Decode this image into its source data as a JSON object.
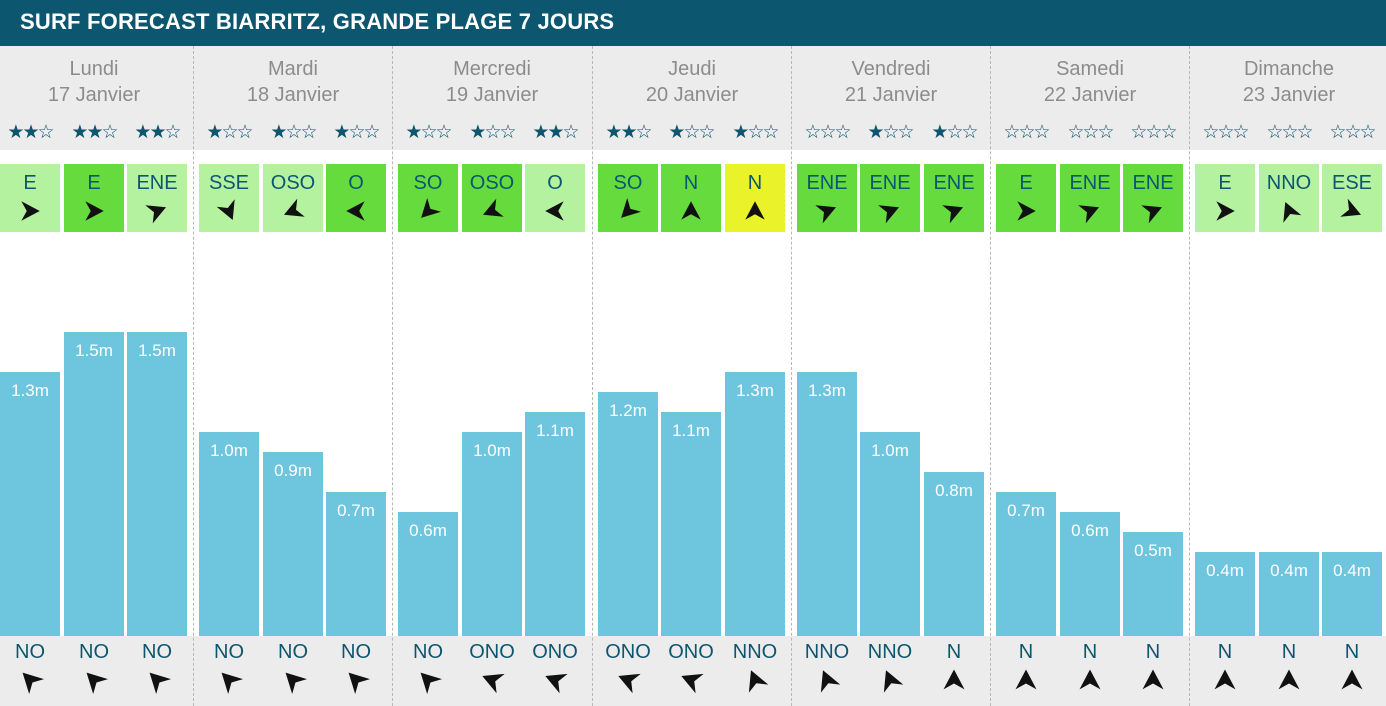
{
  "header": {
    "title": "SURF FORECAST BIARRITZ, GRANDE PLAGE 7 JOURS"
  },
  "days": [
    {
      "name": "Lundi",
      "date": "17 Janvier"
    },
    {
      "name": "Mardi",
      "date": "18 Janvier"
    },
    {
      "name": "Mercredi",
      "date": "19 Janvier"
    },
    {
      "name": "Jeudi",
      "date": "20 Janvier"
    },
    {
      "name": "Vendredi",
      "date": "21 Janvier"
    },
    {
      "name": "Samedi",
      "date": "22 Janvier"
    },
    {
      "name": "Dimanche",
      "date": "23 Janvier"
    }
  ],
  "colors": {
    "header_bg": "#0d5670",
    "text_dark": "#0d5670",
    "bar": "#6ec5de",
    "wind_light": "#b5f2a0",
    "wind_mid": "#66db3e",
    "wind_yellow": "#eaf22a",
    "band_bg": "#ececec"
  },
  "chart_data": {
    "type": "bar",
    "ylabel": "",
    "unit": "m",
    "ylim": [
      0,
      1.5
    ],
    "slots": [
      {
        "day": "Lundi",
        "height": 1.3,
        "label": "1.3m",
        "stars": 2,
        "wind": "E",
        "wind_deg": 90,
        "wind_color": "light",
        "swell": "NO",
        "swell_deg": 315
      },
      {
        "day": "Lundi",
        "height": 1.5,
        "label": "1.5m",
        "stars": 2,
        "wind": "E",
        "wind_deg": 90,
        "wind_color": "mid",
        "swell": "NO",
        "swell_deg": 315
      },
      {
        "day": "Lundi",
        "height": 1.5,
        "label": "1.5m",
        "stars": 2,
        "wind": "ENE",
        "wind_deg": 67.5,
        "wind_color": "light",
        "swell": "NO",
        "swell_deg": 315
      },
      {
        "day": "Mardi",
        "height": 1.0,
        "label": "1.0m",
        "stars": 1,
        "wind": "SSE",
        "wind_deg": 157.5,
        "wind_color": "light",
        "swell": "NO",
        "swell_deg": 315
      },
      {
        "day": "Mardi",
        "height": 0.9,
        "label": "0.9m",
        "stars": 1,
        "wind": "OSO",
        "wind_deg": 247.5,
        "wind_color": "light",
        "swell": "NO",
        "swell_deg": 315
      },
      {
        "day": "Mardi",
        "height": 0.7,
        "label": "0.7m",
        "stars": 1,
        "wind": "O",
        "wind_deg": 270,
        "wind_color": "mid",
        "swell": "NO",
        "swell_deg": 315
      },
      {
        "day": "Mercredi",
        "height": 0.6,
        "label": "0.6m",
        "stars": 1,
        "wind": "SO",
        "wind_deg": 225,
        "wind_color": "mid",
        "swell": "NO",
        "swell_deg": 315
      },
      {
        "day": "Mercredi",
        "height": 1.0,
        "label": "1.0m",
        "stars": 1,
        "wind": "OSO",
        "wind_deg": 247.5,
        "wind_color": "mid",
        "swell": "ONO",
        "swell_deg": 292.5
      },
      {
        "day": "Mercredi",
        "height": 1.1,
        "label": "1.1m",
        "stars": 2,
        "wind": "O",
        "wind_deg": 270,
        "wind_color": "light",
        "swell": "ONO",
        "swell_deg": 292.5
      },
      {
        "day": "Jeudi",
        "height": 1.2,
        "label": "1.2m",
        "stars": 2,
        "wind": "SO",
        "wind_deg": 225,
        "wind_color": "mid",
        "swell": "ONO",
        "swell_deg": 292.5
      },
      {
        "day": "Jeudi",
        "height": 1.1,
        "label": "1.1m",
        "stars": 1,
        "wind": "N",
        "wind_deg": 0,
        "wind_color": "mid",
        "swell": "ONO",
        "swell_deg": 292.5
      },
      {
        "day": "Jeudi",
        "height": 1.3,
        "label": "1.3m",
        "stars": 1,
        "wind": "N",
        "wind_deg": 0,
        "wind_color": "yellow",
        "swell": "NNO",
        "swell_deg": 337.5
      },
      {
        "day": "Vendredi",
        "height": 1.3,
        "label": "1.3m",
        "stars": 0,
        "wind": "ENE",
        "wind_deg": 67.5,
        "wind_color": "mid",
        "swell": "NNO",
        "swell_deg": 337.5
      },
      {
        "day": "Vendredi",
        "height": 1.0,
        "label": "1.0m",
        "stars": 1,
        "wind": "ENE",
        "wind_deg": 67.5,
        "wind_color": "mid",
        "swell": "NNO",
        "swell_deg": 337.5
      },
      {
        "day": "Vendredi",
        "height": 0.8,
        "label": "0.8m",
        "stars": 1,
        "wind": "ENE",
        "wind_deg": 67.5,
        "wind_color": "mid",
        "swell": "N",
        "swell_deg": 0
      },
      {
        "day": "Samedi",
        "height": 0.7,
        "label": "0.7m",
        "stars": 0,
        "wind": "E",
        "wind_deg": 90,
        "wind_color": "mid",
        "swell": "N",
        "swell_deg": 0
      },
      {
        "day": "Samedi",
        "height": 0.6,
        "label": "0.6m",
        "stars": 0,
        "wind": "ENE",
        "wind_deg": 67.5,
        "wind_color": "mid",
        "swell": "N",
        "swell_deg": 0
      },
      {
        "day": "Samedi",
        "height": 0.5,
        "label": "0.5m",
        "stars": 0,
        "wind": "ENE",
        "wind_deg": 67.5,
        "wind_color": "mid",
        "swell": "N",
        "swell_deg": 0
      },
      {
        "day": "Dimanche",
        "height": 0.4,
        "label": "0.4m",
        "stars": 0,
        "wind": "E",
        "wind_deg": 90,
        "wind_color": "light",
        "swell": "N",
        "swell_deg": 0
      },
      {
        "day": "Dimanche",
        "height": 0.4,
        "label": "0.4m",
        "stars": 0,
        "wind": "NNO",
        "wind_deg": 337.5,
        "wind_color": "light",
        "swell": "N",
        "swell_deg": 0
      },
      {
        "day": "Dimanche",
        "height": 0.4,
        "label": "0.4m",
        "stars": 0,
        "wind": "ESE",
        "wind_deg": 112.5,
        "wind_color": "light",
        "swell": "N",
        "swell_deg": 0
      }
    ]
  }
}
